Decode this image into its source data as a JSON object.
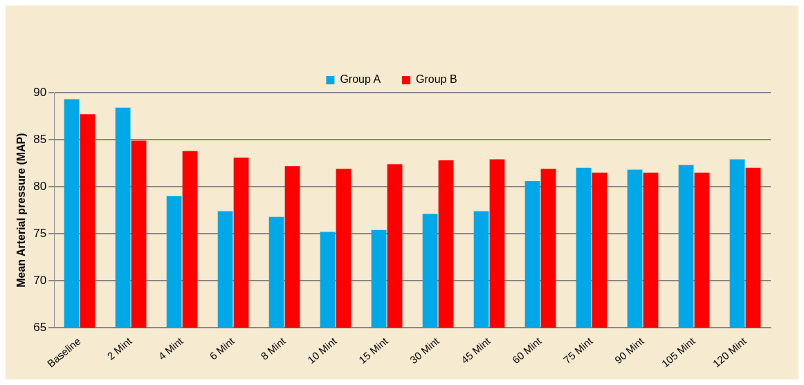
{
  "chart_data": {
    "type": "bar",
    "ylabel": "Mean Arterial pressure (MAP)",
    "categories": [
      "Baseline",
      "2 Mint",
      "4 Mint",
      "6 Mint",
      "8 Mint",
      "10 Mint",
      "15 Mint",
      "30 Mint",
      "45 Mint",
      "60 Mint",
      "75 Mint",
      "90 Mint",
      "105 Mint",
      "120 Mint"
    ],
    "series": [
      {
        "name": "Group A",
        "color": "#00a8e8",
        "values": [
          89.3,
          88.4,
          79,
          77.4,
          76.8,
          75.2,
          75.4,
          77.1,
          77.4,
          80.6,
          82,
          81.8,
          82.3,
          82.9
        ]
      },
      {
        "name": "Group B",
        "color": "#ff0000",
        "values": [
          87.7,
          84.9,
          83.8,
          83.1,
          82.2,
          81.9,
          82.4,
          82.8,
          82.9,
          81.9,
          81.5,
          81.5,
          81.5,
          82
        ]
      }
    ],
    "ylim": [
      65,
      90
    ],
    "yticks": [
      65,
      70,
      75,
      80,
      85,
      90
    ],
    "grid": "y",
    "legend": "top"
  }
}
